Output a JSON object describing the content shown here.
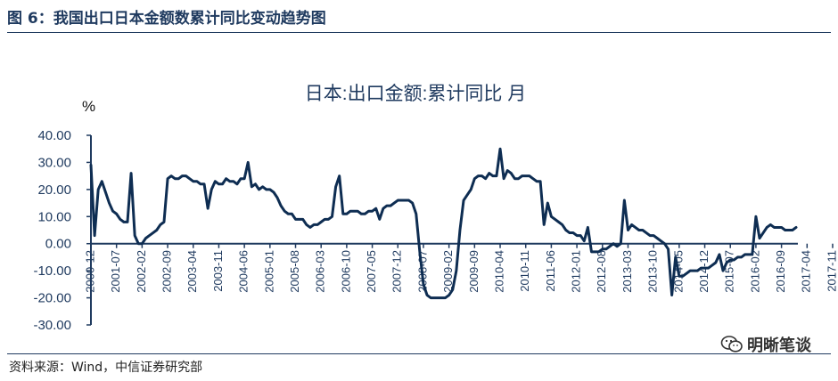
{
  "figure_title": "图 6：我国出口日本金额数累计同比变动趋势图",
  "source_text": "资料来源：Wind，中信证券研究部",
  "watermark_text": "明晰笔谈",
  "colors": {
    "line": "#0e2d52",
    "axis": "#1f3a5f",
    "text": "#1f3a5f"
  },
  "chart_data": {
    "type": "line",
    "title": "日本:出口金额:累计同比 月",
    "ylabel": "%",
    "ylim": [
      -30,
      40
    ],
    "yticks": [
      "40.00",
      "30.00",
      "20.00",
      "10.00",
      "0.00",
      "-10.00",
      "-20.00",
      "-30.00"
    ],
    "xticks": [
      "2000-12",
      "2001-07",
      "2002-02",
      "2002-09",
      "2003-04",
      "2003-11",
      "2004-06",
      "2005-01",
      "2005-08",
      "2006-03",
      "2006-10",
      "2007-05",
      "2007-12",
      "2008-07",
      "2009-02",
      "2009-09",
      "2010-04",
      "2010-11",
      "2011-06",
      "2012-01",
      "2012-08",
      "2013-03",
      "2013-10",
      "2014-05",
      "2014-12",
      "2015-07",
      "2016-02",
      "2016-09",
      "2017-04",
      "2017-11"
    ],
    "series": [
      {
        "values": [
          29,
          3,
          20,
          23,
          19,
          15,
          12,
          11,
          9,
          8,
          8,
          26,
          3,
          0,
          0,
          2,
          3,
          4,
          5,
          7,
          8,
          24,
          25,
          24,
          24,
          25,
          25,
          24,
          23,
          23,
          22,
          22,
          13,
          20,
          23,
          22,
          22,
          24,
          23,
          23,
          22,
          24,
          24,
          30,
          21,
          22,
          20,
          21,
          20,
          20,
          19,
          17,
          14,
          12,
          11,
          11,
          9,
          9,
          9,
          7,
          6,
          7,
          7,
          8,
          9,
          9,
          10,
          21,
          25,
          11,
          11,
          12,
          12,
          12,
          11,
          11,
          12,
          12,
          13,
          9,
          13,
          14,
          14,
          15,
          16,
          16,
          16,
          16,
          15,
          11,
          -3,
          -15,
          -19,
          -20,
          -20,
          -20,
          -20,
          -20,
          -19,
          -17,
          -10,
          5,
          16,
          18,
          20,
          24,
          25,
          25,
          24,
          26,
          25,
          25,
          35,
          24,
          27,
          26,
          24,
          24,
          25,
          25,
          25,
          24,
          23,
          23,
          7,
          15,
          10,
          9,
          8,
          7,
          5,
          4,
          4,
          3,
          3,
          1,
          6,
          -3,
          -3,
          -3,
          -2,
          -2,
          -1,
          0,
          -1,
          0,
          16,
          5,
          7,
          6,
          5,
          5,
          4,
          3,
          3,
          2,
          1,
          0,
          -2,
          -19,
          -5,
          -12,
          -12,
          -11,
          -10,
          -10,
          -10,
          -9,
          -9,
          -9,
          -8,
          -7,
          -4,
          -10,
          -7,
          -6,
          -6,
          -5,
          -5,
          -4,
          -4,
          -4,
          10,
          2,
          4,
          6,
          7,
          6,
          6,
          6,
          5,
          5,
          5,
          6
        ]
      }
    ]
  }
}
